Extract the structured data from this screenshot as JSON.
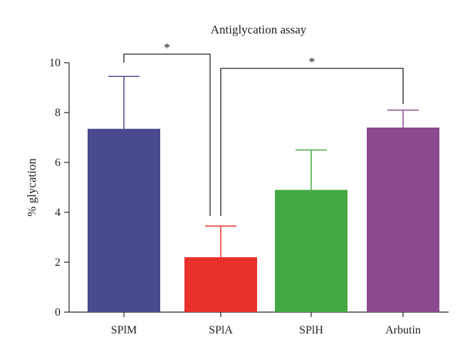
{
  "chart_data": {
    "type": "bar",
    "title": "Antiglycation assay",
    "xlabel": "",
    "ylabel": "% glycation",
    "ylim": [
      0,
      10
    ],
    "yticks": [
      0,
      2,
      4,
      6,
      8,
      10
    ],
    "categories": [
      "SPlM",
      "SPlA",
      "SPlH",
      "Arbutin"
    ],
    "values": [
      7.35,
      2.2,
      4.9,
      7.4
    ],
    "errors": [
      2.1,
      1.25,
      1.6,
      0.7
    ],
    "colors": [
      "#4a4a8e",
      "#e8312a",
      "#43a843",
      "#8b4a8e"
    ],
    "significance": [
      {
        "from": "SPlM",
        "to": "SPlA",
        "label": "*"
      },
      {
        "from": "SPlA",
        "to": "Arbutin",
        "label": "*"
      }
    ]
  }
}
